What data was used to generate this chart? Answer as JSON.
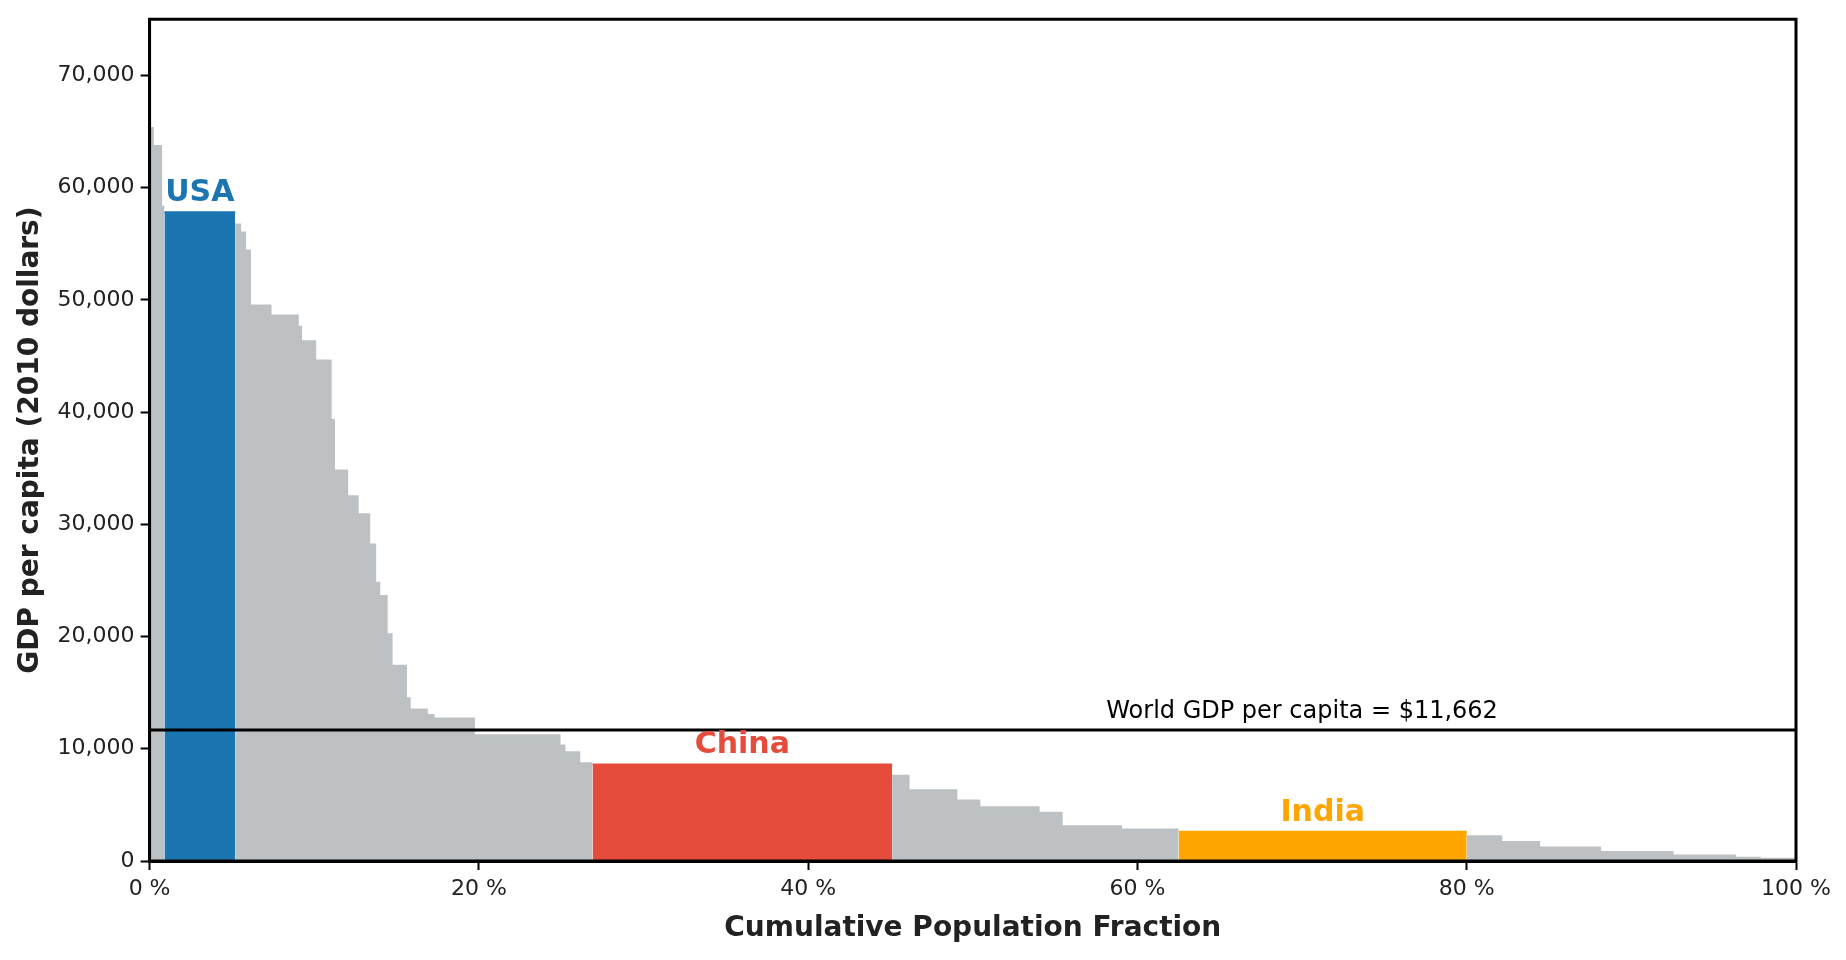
{
  "chart_data": {
    "type": "area",
    "xlabel": "Cumulative Population Fraction",
    "ylabel": "GDP per capita (2010 dollars)",
    "xlim": [
      0,
      100
    ],
    "xticks": [
      {
        "value": 0,
        "label": "0 %"
      },
      {
        "value": 20,
        "label": "20 %"
      },
      {
        "value": 40,
        "label": "40 %"
      },
      {
        "value": 60,
        "label": "60 %"
      },
      {
        "value": 80,
        "label": "80 %"
      },
      {
        "value": 100,
        "label": "100 %"
      }
    ],
    "ylim": [
      0,
      75000
    ],
    "yticks": [
      {
        "value": 0,
        "label": "0"
      },
      {
        "value": 10000,
        "label": "10,000"
      },
      {
        "value": 20000,
        "label": "20,000"
      },
      {
        "value": 30000,
        "label": "30,000"
      },
      {
        "value": 40000,
        "label": "40,000"
      },
      {
        "value": 50000,
        "label": "50,000"
      },
      {
        "value": 60000,
        "label": "60,000"
      },
      {
        "value": 70000,
        "label": "70,000"
      }
    ],
    "grid": false,
    "legend": false,
    "series": [
      {
        "color": "#bdc1c4",
        "x": [
          0,
          0.2,
          0.2,
          0.7,
          0.7,
          0.9
        ],
        "values": [
          65300,
          65300,
          63700,
          63700,
          58300,
          58300
        ]
      },
      {
        "color": "#bdc1c4",
        "x": [
          5.2,
          5.5,
          5.5,
          5.8,
          5.8,
          6.1,
          6.1,
          7.35,
          7.35,
          9.0,
          9.0,
          9.2,
          9.2,
          10.06,
          10.06,
          11.0,
          11.0,
          11.2,
          11.2,
          12.0,
          12.0,
          12.64,
          12.64,
          13.34,
          13.34,
          13.7,
          13.7,
          13.95,
          13.95,
          14.4,
          14.4,
          14.7,
          14.7,
          15.57,
          15.57,
          15.8,
          15.8,
          16.84,
          16.84,
          17.25,
          17.25,
          19.7,
          19.7,
          24.9,
          24.9,
          25.2,
          25.2,
          26.1,
          26.1,
          26.9
        ],
        "values": [
          56700,
          56700,
          56000,
          56000,
          54400,
          54400,
          49500,
          49500,
          48600,
          48600,
          47600,
          47600,
          46300,
          46300,
          44600,
          44600,
          39300,
          39300,
          34800,
          34800,
          32500,
          32500,
          30900,
          30900,
          28200,
          28200,
          24800,
          24800,
          23600,
          23600,
          20200,
          20200,
          17400,
          17400,
          14500,
          14500,
          13500,
          13500,
          13000,
          13000,
          12700,
          12700,
          11200,
          11200,
          10300,
          10300,
          9700,
          9700,
          8700,
          8700
        ]
      },
      {
        "color": "#bdc1c4",
        "x": [
          45.1,
          46.1,
          46.1,
          49.0,
          49.0,
          50.4,
          50.4,
          54.0,
          54.0,
          55.4,
          55.4,
          59.0,
          59.0,
          62.5
        ],
        "values": [
          7600,
          7600,
          6300,
          6300,
          5400,
          5400,
          4800,
          4800,
          4300,
          4300,
          3100,
          3100,
          2800,
          2800
        ]
      },
      {
        "color": "#bdc1c4",
        "x": [
          80.0,
          82.1,
          82.1,
          84.4,
          84.4,
          88.1,
          88.1,
          92.5,
          92.5,
          96.3,
          96.3,
          97.8,
          97.8,
          100
        ],
        "values": [
          2200,
          2200,
          1700,
          1700,
          1200,
          1200,
          800,
          800,
          500,
          500,
          300,
          300,
          200,
          200
        ]
      },
      {
        "name": "USA",
        "color": "#1a75b0",
        "x": [
          0.9,
          5.2
        ],
        "values": [
          57800,
          57800
        ]
      },
      {
        "name": "China",
        "color": "#e64c3c",
        "x": [
          26.9,
          45.1
        ],
        "values": [
          8600,
          8600
        ]
      },
      {
        "name": "India",
        "color": "#ffa500",
        "x": [
          62.5,
          80.0
        ],
        "values": [
          2600,
          2600
        ]
      }
    ],
    "ref_lines": [
      {
        "axis": "y",
        "value": 11662,
        "label": "World GDP per capita = $11,662",
        "color": "#000000"
      }
    ]
  }
}
